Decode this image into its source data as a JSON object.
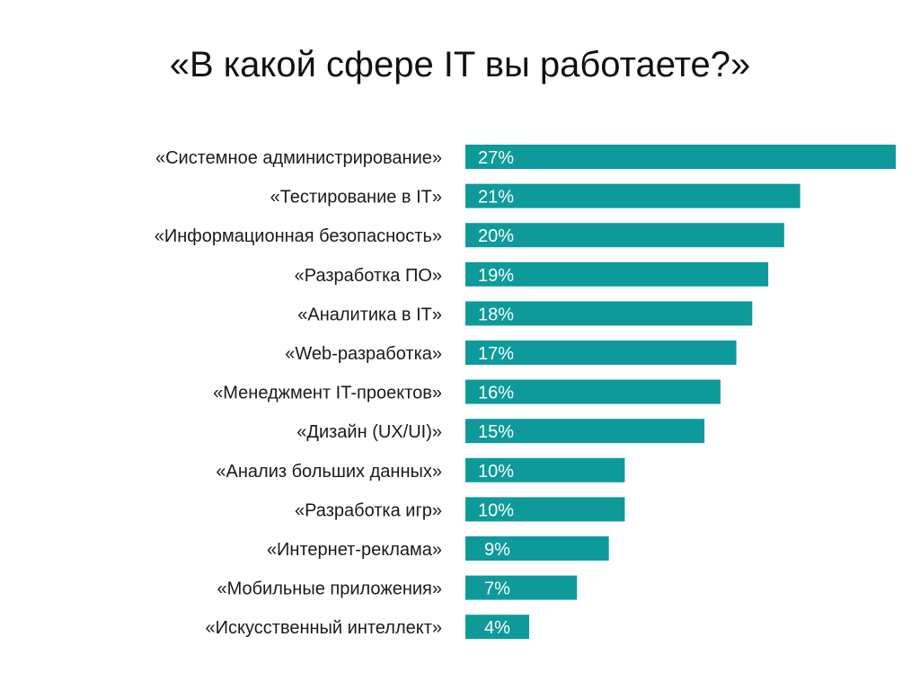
{
  "title": "«В какой сфере IT вы работаете?»",
  "colors": {
    "bar": "#0e9a9a",
    "bar_label": "#ffffff",
    "category_label": "#1a1a1a",
    "background": "#ffffff"
  },
  "chart_data": {
    "type": "bar",
    "orientation": "horizontal",
    "title": "«В какой сфере IT вы работаете?»",
    "xlabel": "",
    "ylabel": "",
    "grid": false,
    "legend": "none",
    "xlim": [
      0,
      27
    ],
    "categories": [
      "«Системное администрирование»",
      "«Тестирование в IT»",
      "«Информационная безопасность»",
      "«Разработка ПО»",
      "«Аналитика в IT»",
      "«Web-разработка»",
      "«Менеджмент IT-проектов»",
      "«Дизайн (UX/UI)»",
      "«Анализ больших данных»",
      "«Разработка игр»",
      "«Интернет-реклама»",
      "«Мобильные приложения»",
      "«Искусственный интеллект»"
    ],
    "values": [
      27,
      21,
      20,
      19,
      18,
      17,
      16,
      15,
      10,
      10,
      9,
      7,
      4
    ],
    "value_labels": [
      "27%",
      "21%",
      "20%",
      "19%",
      "18%",
      "17%",
      "16%",
      "15%",
      "10%",
      "10%",
      "9%",
      "7%",
      "4%"
    ]
  }
}
